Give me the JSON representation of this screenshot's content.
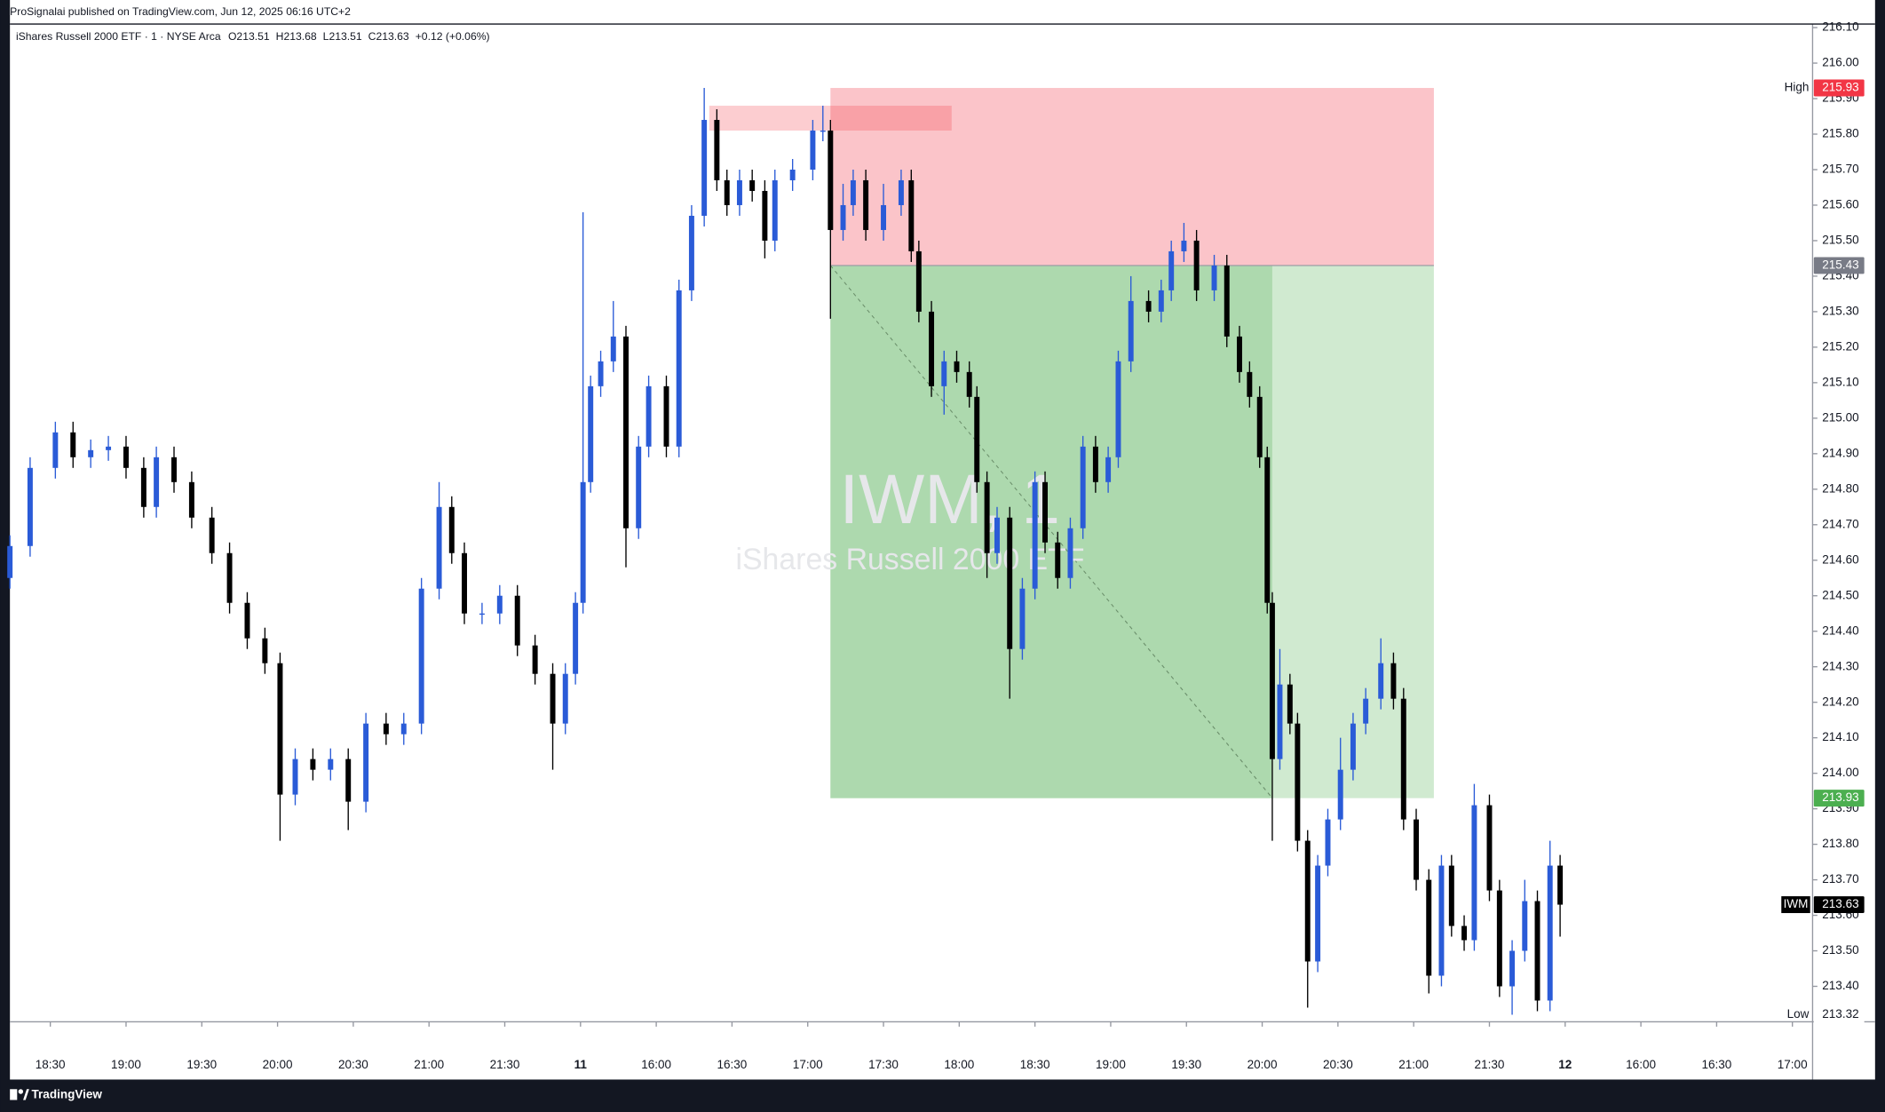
{
  "chart_data": {
    "type": "candlestick",
    "header": "ProSignalai published on TradingView.com, Jun 12, 2025 06:16 UTC+2",
    "legend": {
      "symbol": "iShares Russell 2000 ETF · 1 · NYSE Arca",
      "ohlc": [
        "O213.51",
        "H213.68",
        "L213.51",
        "C213.63"
      ],
      "change": "+0.12 (+0.06%)"
    },
    "watermark": {
      "symbol": "IWM, 1",
      "name": "iShares Russell 2000 ETF"
    },
    "footer": "TradingView",
    "colors": {
      "up": "#2a5bd7",
      "down": "#000000"
    },
    "x": [
      0,
      8,
      18,
      25,
      32,
      39,
      46,
      53,
      58,
      65,
      72,
      80,
      87,
      94,
      101,
      107,
      113,
      120,
      127,
      134,
      141,
      149,
      156,
      163,
      170,
      175,
      180,
      187,
      194,
      201,
      208,
      215,
      220,
      224,
      227,
      230,
      234,
      239,
      244,
      249,
      253,
      260,
      265,
      270,
      275,
      280,
      284,
      289,
      294,
      299,
      303,
      310,
      318,
      322,
      325,
      330,
      334,
      339,
      346,
      353,
      357,
      360,
      365,
      370,
      375,
      380,
      383,
      387,
      391,
      396,
      401,
      406,
      410,
      415,
      420,
      425,
      430,
      435,
      439,
      444,
      451,
      456,
      460,
      465,
      470,
      477,
      482,
      487,
      491,
      495,
      498,
      500,
      503,
      507,
      510,
      514,
      518,
      522,
      527,
      532,
      537,
      543,
      548,
      552,
      557,
      562,
      567,
      571,
      576,
      580,
      586,
      590,
      595,
      600,
      605,
      610,
      614
    ],
    "open": [
      214.55,
      214.64,
      214.86,
      214.96,
      214.89,
      214.91,
      214.92,
      214.86,
      214.75,
      214.89,
      214.82,
      214.72,
      214.62,
      214.48,
      214.38,
      214.31,
      213.94,
      214.04,
      214.01,
      214.04,
      213.92,
      214.14,
      214.11,
      214.14,
      214.52,
      214.75,
      214.62,
      214.45,
      214.45,
      214.5,
      214.36,
      214.28,
      214.14,
      214.28,
      214.48,
      214.82,
      215.09,
      215.16,
      215.23,
      214.69,
      214.92,
      215.09,
      214.92,
      215.36,
      215.57,
      215.84,
      215.67,
      215.6,
      215.67,
      215.64,
      215.5,
      215.67,
      215.7,
      215.81,
      215.81,
      215.53,
      215.6,
      215.67,
      215.53,
      215.6,
      215.67,
      215.47,
      215.3,
      215.09,
      215.16,
      215.13,
      215.06,
      214.82,
      214.62,
      214.72,
      214.35,
      214.52,
      214.82,
      214.65,
      214.55,
      214.69,
      214.92,
      214.82,
      214.89,
      215.16,
      215.33,
      215.3,
      215.36,
      215.47,
      215.5,
      215.36,
      215.43,
      215.23,
      215.13,
      215.06,
      214.89,
      214.48,
      214.04,
      214.25,
      214.14,
      213.81,
      213.47,
      213.74,
      213.87,
      214.01,
      214.14,
      214.21,
      214.31,
      214.21,
      213.87,
      213.7,
      213.43,
      213.74,
      213.57,
      213.53,
      213.91,
      213.67,
      213.4,
      213.5,
      213.64,
      213.36,
      213.74
    ],
    "high": [
      214.67,
      214.89,
      214.99,
      214.99,
      214.94,
      214.95,
      214.95,
      214.89,
      214.92,
      214.92,
      214.85,
      214.75,
      214.65,
      214.51,
      214.41,
      214.34,
      214.07,
      214.07,
      214.07,
      214.07,
      214.17,
      214.17,
      214.17,
      214.55,
      214.82,
      214.78,
      214.65,
      214.48,
      214.53,
      214.53,
      214.39,
      214.31,
      214.31,
      214.51,
      215.58,
      215.12,
      215.19,
      215.33,
      215.26,
      214.95,
      215.12,
      215.12,
      215.39,
      215.6,
      215.93,
      215.87,
      215.7,
      215.7,
      215.7,
      215.67,
      215.7,
      215.73,
      215.84,
      215.88,
      215.84,
      215.66,
      215.7,
      215.7,
      215.66,
      215.7,
      215.7,
      215.5,
      215.33,
      215.19,
      215.19,
      215.16,
      215.09,
      214.85,
      214.75,
      214.75,
      214.55,
      214.85,
      214.85,
      214.68,
      214.72,
      214.95,
      214.95,
      214.92,
      215.19,
      215.4,
      215.36,
      215.39,
      215.5,
      215.55,
      215.53,
      215.46,
      215.46,
      215.26,
      215.16,
      215.09,
      214.92,
      214.51,
      214.35,
      214.28,
      214.17,
      213.84,
      213.77,
      213.9,
      214.1,
      214.17,
      214.24,
      214.38,
      214.34,
      214.24,
      213.9,
      213.73,
      213.77,
      213.77,
      213.6,
      213.97,
      213.94,
      213.7,
      213.53,
      213.7,
      213.67,
      213.81,
      213.77
    ],
    "low": [
      214.52,
      214.61,
      214.83,
      214.86,
      214.86,
      214.88,
      214.83,
      214.72,
      214.72,
      214.79,
      214.69,
      214.59,
      214.45,
      214.35,
      214.28,
      213.81,
      213.91,
      213.98,
      213.98,
      213.84,
      213.89,
      214.08,
      214.08,
      214.11,
      214.49,
      214.59,
      214.42,
      214.42,
      214.42,
      214.33,
      214.25,
      214.01,
      214.11,
      214.25,
      214.45,
      214.79,
      215.06,
      215.13,
      214.58,
      214.66,
      214.89,
      214.89,
      214.89,
      215.33,
      215.54,
      215.64,
      215.57,
      215.57,
      215.61,
      215.45,
      215.47,
      215.64,
      215.67,
      215.78,
      215.28,
      215.5,
      215.57,
      215.5,
      215.5,
      215.57,
      215.44,
      215.27,
      215.06,
      215.01,
      215.1,
      215.03,
      214.79,
      214.55,
      214.59,
      214.21,
      214.32,
      214.49,
      214.62,
      214.52,
      214.52,
      214.66,
      214.79,
      214.79,
      214.86,
      215.13,
      215.27,
      215.27,
      215.33,
      215.44,
      215.33,
      215.33,
      215.2,
      215.1,
      215.03,
      214.86,
      214.45,
      213.81,
      214.01,
      214.11,
      213.78,
      213.34,
      213.44,
      213.71,
      213.84,
      213.98,
      214.11,
      214.18,
      214.18,
      213.84,
      213.67,
      213.38,
      213.4,
      213.54,
      213.5,
      213.5,
      213.64,
      213.37,
      213.32,
      213.47,
      213.33,
      213.33,
      213.54
    ],
    "close": [
      214.64,
      214.86,
      214.96,
      214.89,
      214.91,
      214.92,
      214.86,
      214.75,
      214.89,
      214.82,
      214.72,
      214.62,
      214.48,
      214.38,
      214.31,
      213.94,
      214.04,
      214.01,
      214.04,
      213.92,
      214.14,
      214.11,
      214.14,
      214.52,
      214.75,
      214.62,
      214.45,
      214.45,
      214.5,
      214.36,
      214.28,
      214.14,
      214.28,
      214.48,
      214.82,
      215.09,
      215.16,
      215.23,
      214.69,
      214.92,
      215.09,
      214.92,
      215.36,
      215.57,
      215.84,
      215.67,
      215.6,
      215.67,
      215.64,
      215.5,
      215.67,
      215.7,
      215.81,
      215.81,
      215.53,
      215.6,
      215.67,
      215.53,
      215.6,
      215.67,
      215.47,
      215.3,
      215.09,
      215.16,
      215.13,
      215.06,
      214.82,
      214.62,
      214.72,
      214.35,
      214.52,
      214.82,
      214.65,
      214.55,
      214.69,
      214.92,
      214.82,
      214.89,
      215.16,
      215.33,
      215.3,
      215.36,
      215.47,
      215.5,
      215.36,
      215.43,
      215.23,
      215.13,
      215.06,
      214.89,
      214.48,
      214.04,
      214.25,
      214.14,
      213.81,
      213.47,
      213.74,
      213.87,
      214.01,
      214.14,
      214.21,
      214.31,
      214.21,
      213.87,
      213.7,
      213.43,
      213.74,
      213.57,
      213.53,
      213.91,
      213.67,
      213.4,
      213.5,
      213.64,
      213.36,
      213.74,
      213.63
    ],
    "xlim": [
      0,
      714
    ],
    "ylim": [
      213.3,
      216.11
    ],
    "xticks": [
      {
        "value": 16,
        "label": "18:30"
      },
      {
        "value": 46,
        "label": "19:00"
      },
      {
        "value": 76,
        "label": "19:30"
      },
      {
        "value": 106,
        "label": "20:00"
      },
      {
        "value": 136,
        "label": "20:30"
      },
      {
        "value": 166,
        "label": "21:00"
      },
      {
        "value": 196,
        "label": "21:30"
      },
      {
        "value": 226,
        "label": "11"
      },
      {
        "value": 256,
        "label": "16:00"
      },
      {
        "value": 286,
        "label": "16:30"
      },
      {
        "value": 316,
        "label": "17:00"
      },
      {
        "value": 346,
        "label": "17:30"
      },
      {
        "value": 376,
        "label": "18:00"
      },
      {
        "value": 406,
        "label": "18:30"
      },
      {
        "value": 436,
        "label": "19:00"
      },
      {
        "value": 466,
        "label": "19:30"
      },
      {
        "value": 496,
        "label": "20:00"
      },
      {
        "value": 526,
        "label": "20:30"
      },
      {
        "value": 556,
        "label": "21:00"
      },
      {
        "value": 586,
        "label": "21:30"
      },
      {
        "value": 616,
        "label": "12"
      },
      {
        "value": 646,
        "label": "16:00"
      },
      {
        "value": 676,
        "label": "16:30"
      },
      {
        "value": 706,
        "label": "17:00"
      }
    ],
    "yticks": [
      {
        "value": 216.1,
        "label": "216.10"
      },
      {
        "value": 216.0,
        "label": "216.00"
      },
      {
        "value": 215.9,
        "label": "215.90"
      },
      {
        "value": 215.8,
        "label": "215.80"
      },
      {
        "value": 215.7,
        "label": "215.70"
      },
      {
        "value": 215.6,
        "label": "215.60"
      },
      {
        "value": 215.5,
        "label": "215.50"
      },
      {
        "value": 215.4,
        "label": "215.40"
      },
      {
        "value": 215.3,
        "label": "215.30"
      },
      {
        "value": 215.2,
        "label": "215.20"
      },
      {
        "value": 215.1,
        "label": "215.10"
      },
      {
        "value": 215.0,
        "label": "215.00"
      },
      {
        "value": 214.9,
        "label": "214.90"
      },
      {
        "value": 214.8,
        "label": "214.80"
      },
      {
        "value": 214.7,
        "label": "214.70"
      },
      {
        "value": 214.6,
        "label": "214.60"
      },
      {
        "value": 214.5,
        "label": "214.50"
      },
      {
        "value": 214.4,
        "label": "214.40"
      },
      {
        "value": 214.3,
        "label": "214.30"
      },
      {
        "value": 214.2,
        "label": "214.20"
      },
      {
        "value": 214.1,
        "label": "214.10"
      },
      {
        "value": 214.0,
        "label": "214.00"
      },
      {
        "value": 213.9,
        "label": "213.90"
      },
      {
        "value": 213.8,
        "label": "213.80"
      },
      {
        "value": 213.7,
        "label": "213.70"
      },
      {
        "value": 213.6,
        "label": "213.60"
      },
      {
        "value": 213.5,
        "label": "213.50"
      },
      {
        "value": 213.4,
        "label": "213.40"
      }
    ],
    "position": {
      "entry": 215.43,
      "stop": 215.93,
      "target": 213.93,
      "x_start": 325,
      "x_hit": 500,
      "x_end": 564
    },
    "zone": {
      "x_start": 277,
      "x_end": 373,
      "top": 215.88,
      "bottom": 215.81
    },
    "extremes": [
      {
        "name": "High",
        "value": 215.93,
        "color": "#f23645"
      },
      {
        "name": "Low",
        "value": 213.32
      }
    ],
    "price_labels": [
      {
        "value": 215.43,
        "color": "#787b86"
      },
      {
        "value": 213.93,
        "color": "#4caf50"
      }
    ],
    "symbol_tag": {
      "label": "IWM",
      "value": 213.63,
      "color": "#000000"
    }
  }
}
